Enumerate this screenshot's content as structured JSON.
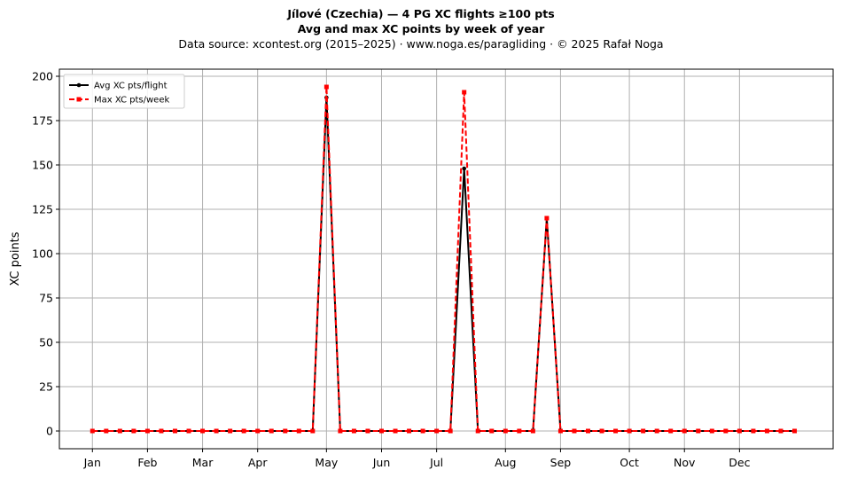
{
  "chart_data": {
    "type": "line",
    "title": "Jílové (Czechia)  —  4 PG XC flights ≥100 pts",
    "subtitle": "Avg and max XC points by week of year",
    "source": "Data source: xcontest.org (2015–2025)  ·  www.noga.es/paragliding  ·  © 2025 Rafał Noga",
    "xlabel": "",
    "ylabel": "XC points",
    "ylim": [
      -10,
      204
    ],
    "yticks": [
      0,
      25,
      50,
      75,
      100,
      125,
      150,
      175,
      200
    ],
    "xlim": [
      -2.4,
      53.8
    ],
    "xticks": [
      {
        "label": "Jan",
        "week": 0
      },
      {
        "label": "Feb",
        "week": 4
      },
      {
        "label": "Mar",
        "week": 8
      },
      {
        "label": "Apr",
        "week": 12
      },
      {
        "label": "May",
        "week": 17
      },
      {
        "label": "Jun",
        "week": 21
      },
      {
        "label": "Jul",
        "week": 25
      },
      {
        "label": "Aug",
        "week": 30
      },
      {
        "label": "Sep",
        "week": 34
      },
      {
        "label": "Oct",
        "week": 39
      },
      {
        "label": "Nov",
        "week": 43
      },
      {
        "label": "Dec",
        "week": 47
      }
    ],
    "grid": true,
    "legend_position": "top-left",
    "series": [
      {
        "name": "Avg XC pts/flight",
        "color": "#000000",
        "style": "solid",
        "marker": "circle",
        "x": [
          0,
          1,
          2,
          3,
          4,
          5,
          6,
          7,
          8,
          9,
          10,
          11,
          12,
          13,
          14,
          15,
          16,
          17,
          18,
          19,
          20,
          21,
          22,
          23,
          24,
          25,
          26,
          27,
          28,
          29,
          30,
          31,
          32,
          33,
          34,
          35,
          36,
          37,
          38,
          39,
          40,
          41,
          42,
          43,
          44,
          45,
          46,
          47,
          48,
          49,
          50,
          51
        ],
        "values": [
          0,
          0,
          0,
          0,
          0,
          0,
          0,
          0,
          0,
          0,
          0,
          0,
          0,
          0,
          0,
          0,
          0,
          188,
          0,
          0,
          0,
          0,
          0,
          0,
          0,
          0,
          0,
          148,
          0,
          0,
          0,
          0,
          0,
          120,
          0,
          0,
          0,
          0,
          0,
          0,
          0,
          0,
          0,
          0,
          0,
          0,
          0,
          0,
          0,
          0,
          0,
          0
        ]
      },
      {
        "name": "Max XC pts/week",
        "color": "#ff0000",
        "style": "dashed",
        "marker": "square",
        "x": [
          0,
          1,
          2,
          3,
          4,
          5,
          6,
          7,
          8,
          9,
          10,
          11,
          12,
          13,
          14,
          15,
          16,
          17,
          18,
          19,
          20,
          21,
          22,
          23,
          24,
          25,
          26,
          27,
          28,
          29,
          30,
          31,
          32,
          33,
          34,
          35,
          36,
          37,
          38,
          39,
          40,
          41,
          42,
          43,
          44,
          45,
          46,
          47,
          48,
          49,
          50,
          51
        ],
        "values": [
          0,
          0,
          0,
          0,
          0,
          0,
          0,
          0,
          0,
          0,
          0,
          0,
          0,
          0,
          0,
          0,
          0,
          194,
          0,
          0,
          0,
          0,
          0,
          0,
          0,
          0,
          0,
          191,
          0,
          0,
          0,
          0,
          0,
          120,
          0,
          0,
          0,
          0,
          0,
          0,
          0,
          0,
          0,
          0,
          0,
          0,
          0,
          0,
          0,
          0,
          0,
          0
        ]
      }
    ]
  }
}
